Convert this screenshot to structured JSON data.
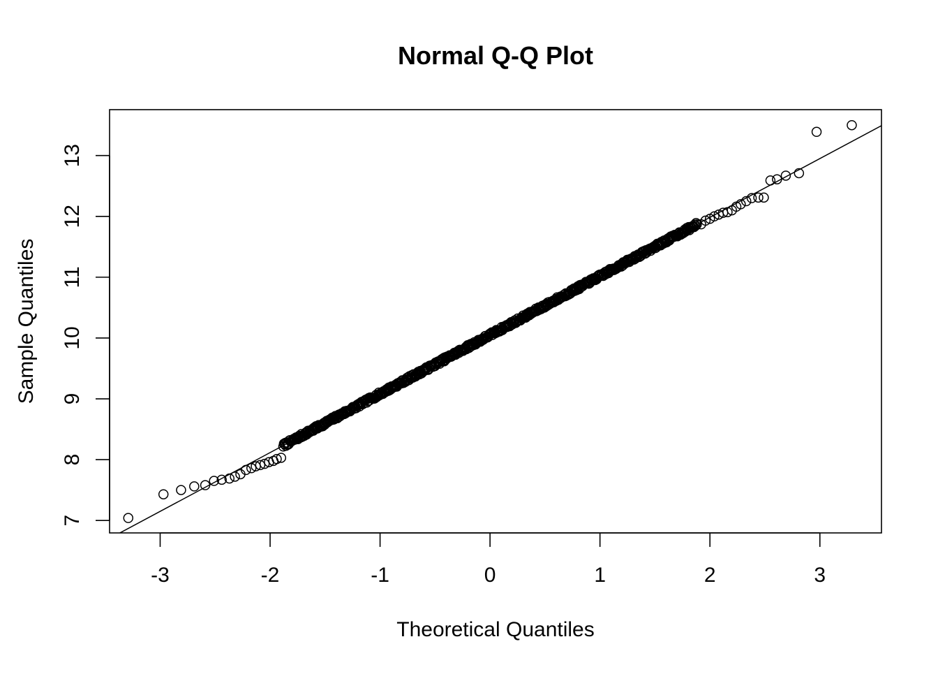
{
  "chart_data": {
    "type": "scatter",
    "title": "Normal Q-Q Plot",
    "xlabel": "Theoretical Quantiles",
    "ylabel": "Sample Quantiles",
    "xlim": [
      -3.46,
      3.56
    ],
    "ylim": [
      6.795,
      13.755
    ],
    "x_ticks": [
      -3,
      -2,
      -1,
      0,
      1,
      2,
      3
    ],
    "x_tick_labels": [
      "-3",
      "-2",
      "-1",
      "0",
      "1",
      "2",
      "3"
    ],
    "y_ticks": [
      7,
      8,
      9,
      10,
      11,
      12,
      13
    ],
    "y_tick_labels": [
      "7",
      "8",
      "9",
      "10",
      "11",
      "12",
      "13"
    ],
    "grid": false,
    "legend": "none",
    "marker": "open-circle",
    "reference_line": {
      "intercept": 10.05,
      "slope": 0.967
    },
    "tail_points": [
      {
        "x": -3.29,
        "y": 7.04
      },
      {
        "x": -2.97,
        "y": 7.43
      },
      {
        "x": -2.81,
        "y": 7.5
      },
      {
        "x": -2.69,
        "y": 7.56
      },
      {
        "x": -2.59,
        "y": 7.58
      },
      {
        "x": -2.51,
        "y": 7.65
      },
      {
        "x": -2.44,
        "y": 7.67
      },
      {
        "x": -2.37,
        "y": 7.69
      },
      {
        "x": -2.32,
        "y": 7.72
      },
      {
        "x": -2.27,
        "y": 7.76
      },
      {
        "x": -2.22,
        "y": 7.83
      },
      {
        "x": -2.17,
        "y": 7.86
      },
      {
        "x": -2.13,
        "y": 7.89
      },
      {
        "x": -2.09,
        "y": 7.91
      },
      {
        "x": -2.05,
        "y": 7.93
      },
      {
        "x": -2.01,
        "y": 7.96
      },
      {
        "x": -1.97,
        "y": 7.98
      },
      {
        "x": -1.94,
        "y": 8.01
      },
      {
        "x": -1.9,
        "y": 8.03
      },
      {
        "x": 1.92,
        "y": 11.87
      },
      {
        "x": 1.96,
        "y": 11.93
      },
      {
        "x": 2.0,
        "y": 11.96
      },
      {
        "x": 2.04,
        "y": 12.0
      },
      {
        "x": 2.08,
        "y": 12.03
      },
      {
        "x": 2.12,
        "y": 12.06
      },
      {
        "x": 2.16,
        "y": 12.07
      },
      {
        "x": 2.2,
        "y": 12.1
      },
      {
        "x": 2.24,
        "y": 12.16
      },
      {
        "x": 2.28,
        "y": 12.2
      },
      {
        "x": 2.33,
        "y": 12.25
      },
      {
        "x": 2.38,
        "y": 12.3
      },
      {
        "x": 2.44,
        "y": 12.31
      },
      {
        "x": 2.49,
        "y": 12.31
      },
      {
        "x": 2.55,
        "y": 12.59
      },
      {
        "x": 2.61,
        "y": 12.61
      },
      {
        "x": 2.69,
        "y": 12.67
      },
      {
        "x": 2.81,
        "y": 12.71
      },
      {
        "x": 2.97,
        "y": 13.39
      },
      {
        "x": 3.29,
        "y": 13.5
      }
    ],
    "bulk_range": {
      "x_min": -1.88,
      "x_max": 1.88,
      "count": 620,
      "seed": 7,
      "sigma": 0.03
    }
  }
}
